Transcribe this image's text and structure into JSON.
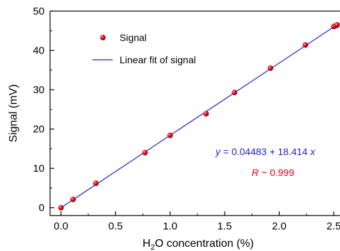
{
  "chart_data": {
    "type": "scatter",
    "xlabel_main": "H",
    "xlabel_sub": "2",
    "xlabel_rest": "O concentration (%)",
    "ylabel": "Signal (mV)",
    "xlim": [
      -0.1,
      2.57
    ],
    "ylim": [
      -2,
      50
    ],
    "xticks": [
      0.0,
      0.5,
      1.0,
      1.5,
      2.0,
      2.5
    ],
    "xtick_labels": [
      "0.0",
      "0.5",
      "1.0",
      "1.5",
      "2.0",
      "2.5"
    ],
    "yticks": [
      0,
      10,
      20,
      30,
      40,
      50
    ],
    "ytick_labels": [
      "0",
      "10",
      "20",
      "30",
      "40",
      "50"
    ],
    "grid": false,
    "legend_position": "top-left",
    "series": [
      {
        "name": "Signal",
        "kind": "scatter",
        "color": "#e0001b",
        "x": [
          0.0,
          0.11,
          0.32,
          0.77,
          1.0,
          1.33,
          1.59,
          1.92,
          2.24,
          2.5,
          2.52,
          2.53
        ],
        "y": [
          0.0,
          2.1,
          6.2,
          14.0,
          18.4,
          23.9,
          29.3,
          35.5,
          41.4,
          46.1,
          46.3,
          46.5
        ]
      },
      {
        "name": "Linear fit of signal",
        "kind": "line",
        "color": "#1f1fd6",
        "x": [
          0.0,
          2.55
        ],
        "y": [
          0.0,
          46.9
        ]
      }
    ],
    "annotations": {
      "equation_var_y": "y",
      "equation_body": " = 0.04483 + 18.414 ",
      "equation_var_x": "x",
      "equation_color": "#1f1fd6",
      "r_var": "R",
      "r_body": " ~ 0.999",
      "r_color": "#e0001b"
    }
  }
}
